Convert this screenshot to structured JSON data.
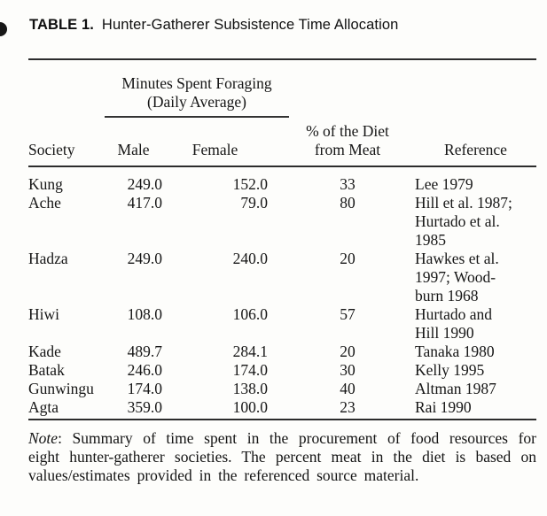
{
  "title": {
    "label": "TABLE 1.",
    "text": "Hunter-Gatherer Subsistence Time Allocation"
  },
  "table": {
    "spanner": "Minutes Spent Foraging\n(Daily Average)",
    "columns": {
      "society": "Society",
      "male": "Male",
      "female": "Female",
      "pct_meat": "% of the Diet\nfrom Meat",
      "reference": "Reference"
    },
    "rows": [
      {
        "society": "Kung",
        "male": "249.0",
        "female": "152.0",
        "pct": "33",
        "reference": "Lee 1979"
      },
      {
        "society": "Ache",
        "male": "417.0",
        "female": "79.0",
        "pct": "80",
        "reference": "Hill et al. 1987;\nHurtado et al.\n1985"
      },
      {
        "society": "Hadza",
        "male": "249.0",
        "female": "240.0",
        "pct": "20",
        "reference": "Hawkes et al.\n1997; Wood-\nburn 1968"
      },
      {
        "society": "Hiwi",
        "male": "108.0",
        "female": "106.0",
        "pct": "57",
        "reference": "Hurtado and\nHill 1990"
      },
      {
        "society": "Kade",
        "male": "489.7",
        "female": "284.1",
        "pct": "20",
        "reference": "Tanaka 1980"
      },
      {
        "society": "Batak",
        "male": "246.0",
        "female": "174.0",
        "pct": "30",
        "reference": "Kelly 1995"
      },
      {
        "society": "Gunwingu",
        "male": "174.0",
        "female": "138.0",
        "pct": "40",
        "reference": "Altman 1987"
      },
      {
        "society": "Agta",
        "male": "359.0",
        "female": "100.0",
        "pct": "23",
        "reference": "Rai 1990"
      }
    ]
  },
  "note": {
    "label": "Note",
    "text": ": Summary of time spent in the procurement of food resources for eight hunter-gatherer societies. The percent meat in the diet is based on values/estimates provided in the referenced source material."
  },
  "colors": {
    "background": "#fdfdfb",
    "text": "#161616",
    "rule": "#2c2c2c"
  },
  "chart_data": {
    "type": "table",
    "title": "TABLE 1. Hunter-Gatherer Subsistence Time Allocation",
    "columns": [
      "Society",
      "Male (minutes foraging, daily avg)",
      "Female (minutes foraging, daily avg)",
      "% of the Diet from Meat",
      "Reference"
    ],
    "rows": [
      [
        "Kung",
        249.0,
        152.0,
        33,
        "Lee 1979"
      ],
      [
        "Ache",
        417.0,
        79.0,
        80,
        "Hill et al. 1987; Hurtado et al. 1985"
      ],
      [
        "Hadza",
        249.0,
        240.0,
        20,
        "Hawkes et al. 1997; Woodburn 1968"
      ],
      [
        "Hiwi",
        108.0,
        106.0,
        57,
        "Hurtado and Hill 1990"
      ],
      [
        "Kade",
        489.7,
        284.1,
        20,
        "Tanaka 1980"
      ],
      [
        "Batak",
        246.0,
        174.0,
        30,
        "Kelly 1995"
      ],
      [
        "Gunwingu",
        174.0,
        138.0,
        40,
        "Altman 1987"
      ],
      [
        "Agta",
        359.0,
        100.0,
        23,
        "Rai 1990"
      ]
    ]
  }
}
